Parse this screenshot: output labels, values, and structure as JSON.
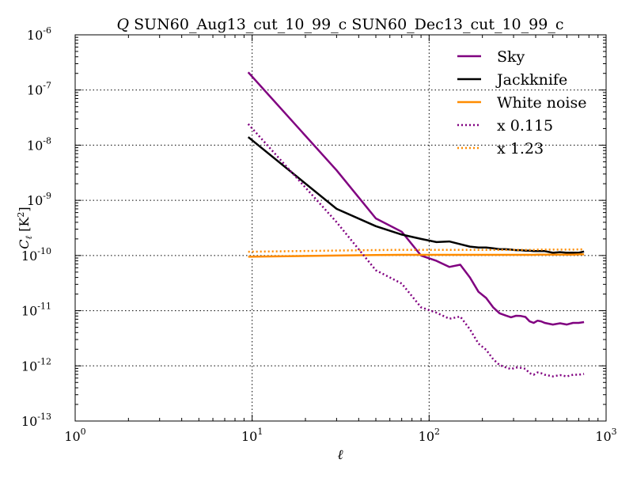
{
  "chart_data": {
    "type": "line",
    "title_prefix": "Q",
    "title": "SUN60_Aug13_cut_10_99_c SUN60_Dec13_cut_10_99_c",
    "xlabel": "ℓ",
    "ylabel_main": "C",
    "ylabel_sub": "ℓ",
    "ylabel_unit": "[K",
    "ylabel_unit_sup": "2",
    "ylabel_unit_end": "]",
    "xscale": "log",
    "yscale": "log",
    "xlim": [
      1,
      1000
    ],
    "ylim": [
      1e-13,
      1e-06
    ],
    "grid": true,
    "legend_position": "top-right",
    "x_ticks": [
      {
        "base": "10",
        "exp": "0",
        "value": 1
      },
      {
        "base": "10",
        "exp": "1",
        "value": 10
      },
      {
        "base": "10",
        "exp": "2",
        "value": 100
      },
      {
        "base": "10",
        "exp": "3",
        "value": 1000
      }
    ],
    "y_ticks": [
      {
        "base": "10",
        "exp": "-13",
        "value": 1e-13
      },
      {
        "base": "10",
        "exp": "-12",
        "value": 1e-12
      },
      {
        "base": "10",
        "exp": "-11",
        "value": 1e-11
      },
      {
        "base": "10",
        "exp": "-10",
        "value": 1e-10
      },
      {
        "base": "10",
        "exp": "-9",
        "value": 1e-09
      },
      {
        "base": "10",
        "exp": "-8",
        "value": 1e-08
      },
      {
        "base": "10",
        "exp": "-7",
        "value": 1e-07
      },
      {
        "base": "10",
        "exp": "-6",
        "value": 1e-06
      }
    ],
    "x": [
      9.5,
      30,
      50,
      70,
      90,
      110,
      130,
      150,
      170,
      190,
      210,
      230,
      250,
      270,
      290,
      310,
      330,
      350,
      370,
      390,
      410,
      430,
      450,
      500,
      550,
      600,
      650,
      700,
      750
    ],
    "series": [
      {
        "name": "Sky",
        "color": "#800080",
        "style": "solid",
        "values": [
          2.1e-07,
          3.5e-09,
          4.7e-10,
          2.7e-10,
          1e-10,
          8e-11,
          6.2e-11,
          6.8e-11,
          4e-11,
          2.2e-11,
          1.7e-11,
          1.15e-11,
          9e-12,
          8.2e-12,
          7.6e-12,
          8.1e-12,
          8e-12,
          7.7e-12,
          6.4e-12,
          6e-12,
          6.6e-12,
          6.4e-12,
          6e-12,
          5.6e-12,
          5.9e-12,
          5.6e-12,
          6e-12,
          6e-12,
          6.2e-12
        ]
      },
      {
        "name": "Jackknife",
        "color": "#000000",
        "style": "solid",
        "values": [
          1.4e-08,
          7e-10,
          3.4e-10,
          2.4e-10,
          2e-10,
          1.75e-10,
          1.8e-10,
          1.6e-10,
          1.45e-10,
          1.4e-10,
          1.4e-10,
          1.35e-10,
          1.3e-10,
          1.3e-10,
          1.28e-10,
          1.25e-10,
          1.25e-10,
          1.22e-10,
          1.22e-10,
          1.2e-10,
          1.2e-10,
          1.2e-10,
          1.2e-10,
          1.12e-10,
          1.15e-10,
          1.12e-10,
          1.13e-10,
          1.12e-10,
          1.18e-10
        ]
      },
      {
        "name": "White noise",
        "color": "#ff8c00",
        "style": "solid",
        "values": [
          9.5e-11,
          1e-10,
          1.02e-10,
          1.03e-10,
          1.03e-10,
          1.03e-10,
          1.03e-10,
          1.03e-10,
          1.03e-10,
          1.03e-10,
          1.03e-10,
          1.03e-10,
          1.03e-10,
          1.03e-10,
          1.03e-10,
          1.03e-10,
          1.03e-10,
          1.03e-10,
          1.03e-10,
          1.03e-10,
          1.04e-10,
          1.04e-10,
          1.04e-10,
          1.04e-10,
          1.04e-10,
          1.04e-10,
          1.04e-10,
          1.05e-10,
          1.05e-10
        ]
      },
      {
        "name": "x 0.115",
        "color": "#800080",
        "style": "dotted",
        "scale_of": "Sky",
        "factor": 0.115
      },
      {
        "name": "x 1.23",
        "color": "#ff8c00",
        "style": "dotted",
        "scale_of": "White noise",
        "factor": 1.23
      }
    ]
  }
}
